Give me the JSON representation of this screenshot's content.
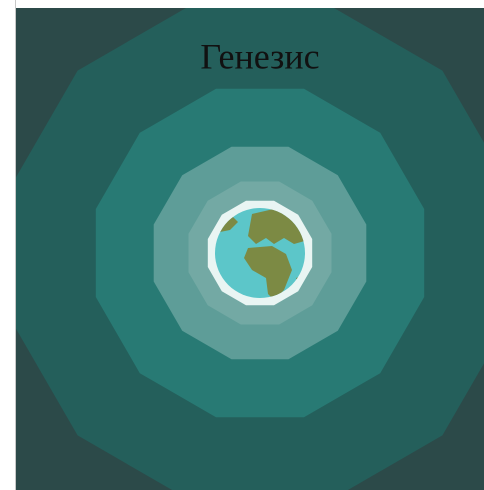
{
  "header": {
    "title": "Генезис"
  }
}
